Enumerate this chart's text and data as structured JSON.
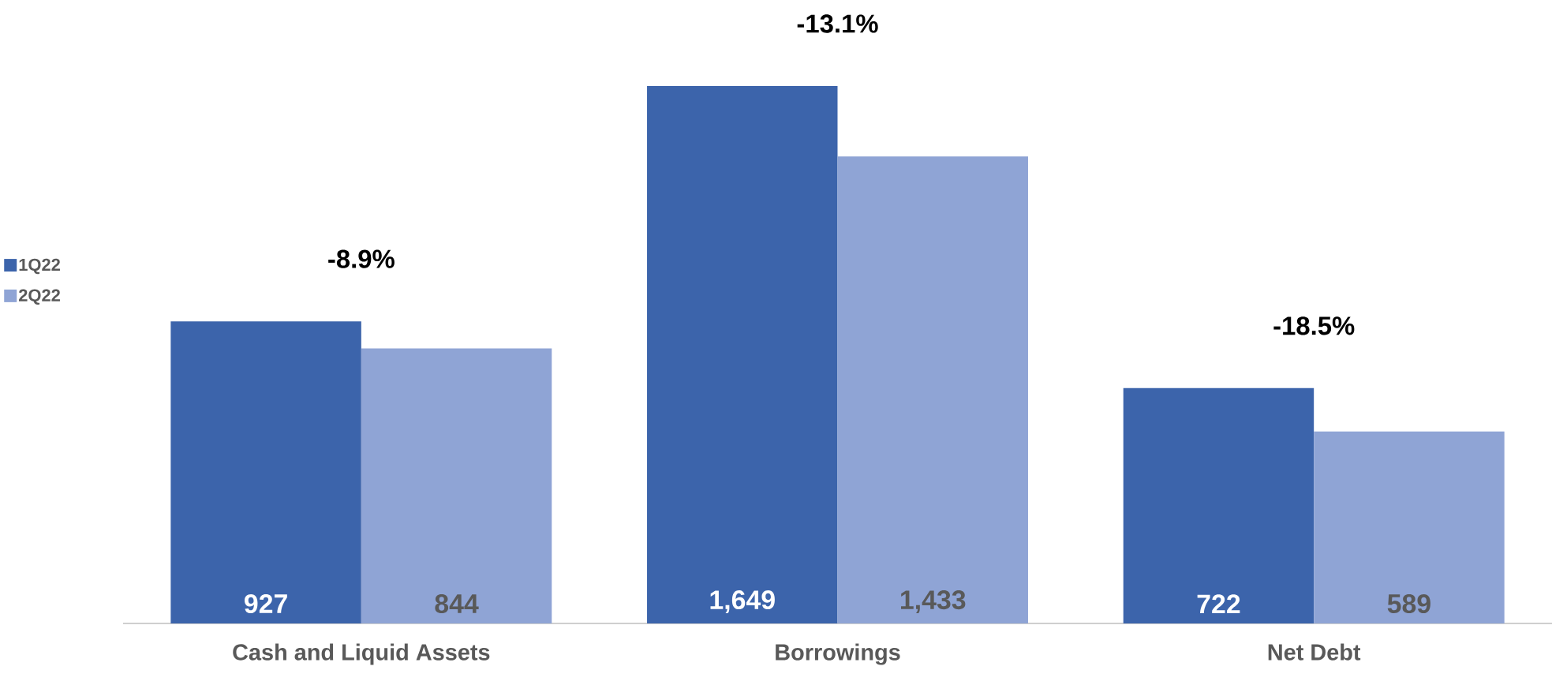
{
  "chart_data": {
    "type": "bar",
    "categories": [
      "Cash and Liquid Assets",
      "Borrowings",
      "Net Debt"
    ],
    "series": [
      {
        "name": "1Q22",
        "color": "#3c64ab",
        "values": [
          927,
          1649,
          722
        ],
        "value_labels": [
          "927",
          "1,649",
          "722"
        ]
      },
      {
        "name": "2Q22",
        "color": "#8fa4d5",
        "values": [
          844,
          1433,
          589
        ],
        "value_labels": [
          "844",
          "1,433",
          "589"
        ]
      }
    ],
    "annotations": [
      "-8.9%",
      "-13.1%",
      "-18.5%"
    ],
    "legend": "left"
  }
}
